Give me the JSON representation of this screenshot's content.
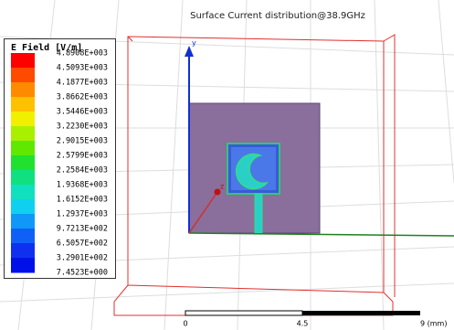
{
  "title": "Surface Current distribution@38.9GHz",
  "legend": {
    "title": "E Field [V/m]",
    "labels": [
      "4.8908E+003",
      "4.5093E+003",
      "4.1877E+003",
      "3.8662E+003",
      "3.5446E+003",
      "3.2230E+003",
      "2.9015E+003",
      "2.5799E+003",
      "2.2584E+003",
      "1.9368E+003",
      "1.6152E+003",
      "1.2937E+003",
      "9.7213E+002",
      "6.5057E+002",
      "3.2901E+002",
      "7.4523E+000"
    ]
  },
  "axes": {
    "y": "y",
    "z": "z"
  },
  "scale_bar": {
    "labels": [
      "0",
      "4.5",
      "9 (mm)"
    ]
  }
}
